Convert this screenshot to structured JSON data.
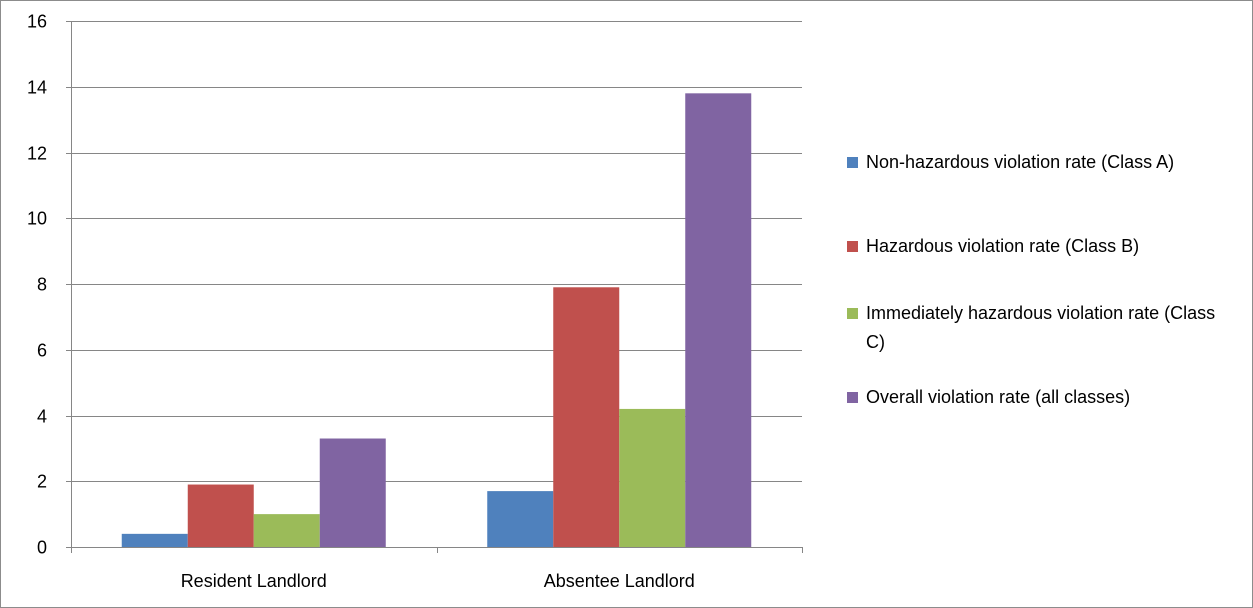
{
  "chart_data": {
    "type": "bar",
    "categories": [
      "Resident Landlord",
      "Absentee Landlord"
    ],
    "series": [
      {
        "name": "Non-hazardous violation rate (Class A)",
        "color": "#4f81bd",
        "values": [
          0.4,
          1.7
        ]
      },
      {
        "name": "Hazardous violation rate (Class B)",
        "color": "#c0504d",
        "values": [
          1.9,
          7.9
        ]
      },
      {
        "name": "Immediately hazardous violation rate (Class C)",
        "color": "#9bbb59",
        "values": [
          1.0,
          4.2
        ]
      },
      {
        "name": "Overall violation rate (all classes)",
        "color": "#8064a2",
        "values": [
          3.3,
          13.8
        ]
      }
    ],
    "ylim": [
      0,
      16
    ],
    "yticks": [
      0,
      2,
      4,
      6,
      8,
      10,
      12,
      14,
      16
    ],
    "title": "",
    "xlabel": "",
    "ylabel": "",
    "grid": true,
    "legend_position": "right"
  }
}
